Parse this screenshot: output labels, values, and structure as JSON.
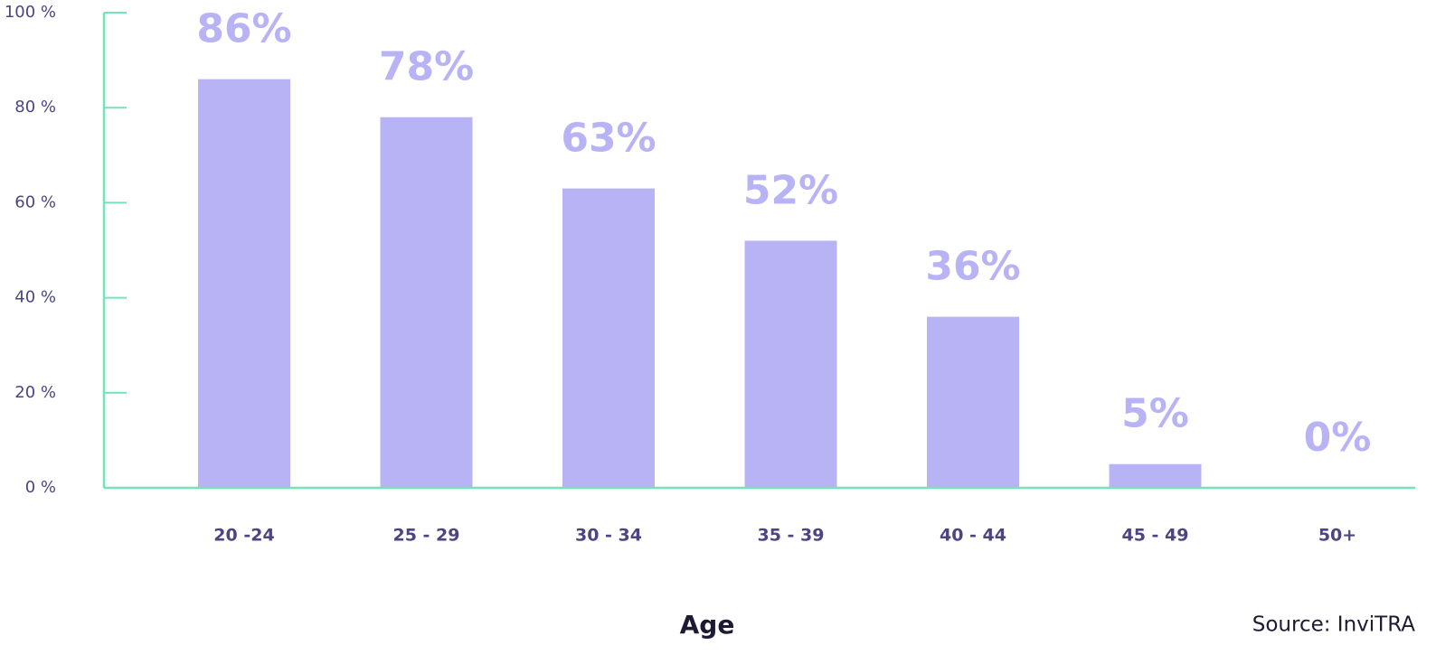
{
  "chart_data": {
    "type": "bar",
    "x_label": "Age",
    "source": "Source: InviTRA",
    "categories": [
      "20 -24",
      "25 - 29",
      "30 - 34",
      "35 - 39",
      "40 - 44",
      "45 - 49",
      "50+"
    ],
    "values": [
      86,
      78,
      63,
      52,
      36,
      5,
      0
    ],
    "value_labels": [
      "86%",
      "78%",
      "63%",
      "52%",
      "36%",
      "5%",
      "0%"
    ],
    "color": "#b8b3f5",
    "axis_color": "#74e4b8",
    "ylim": [
      0,
      100
    ],
    "yticks": [
      {
        "value": 0,
        "label": "0 %"
      },
      {
        "value": 20,
        "label": "20 %"
      },
      {
        "value": 40,
        "label": "40 %"
      },
      {
        "value": 60,
        "label": "60 %"
      },
      {
        "value": 80,
        "label": "80 %"
      },
      {
        "value": 100,
        "label": "100 %"
      }
    ]
  }
}
